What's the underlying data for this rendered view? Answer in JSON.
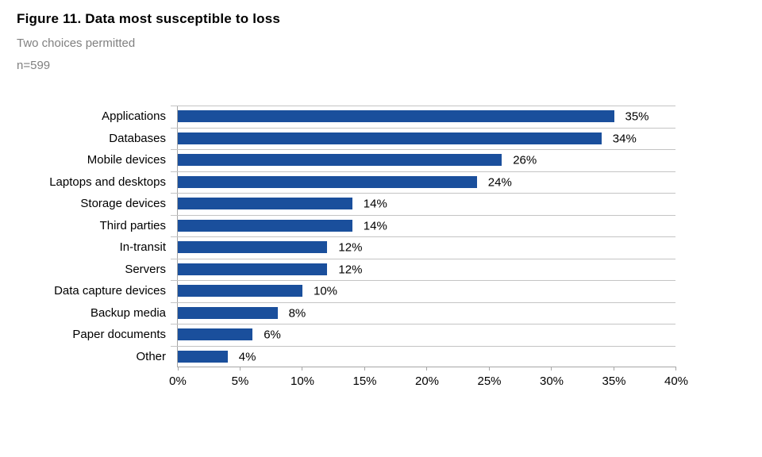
{
  "header": {
    "title": "Figure 11. Data most susceptible to loss",
    "subtitle": "Two choices permitted",
    "sample_size": "n=599"
  },
  "chart_data": {
    "type": "bar",
    "orientation": "horizontal",
    "title": "Figure 11. Data most susceptible to loss",
    "subtitle": "Two choices permitted",
    "note": "n=599",
    "categories": [
      "Applications",
      "Databases",
      "Mobile devices",
      "Laptops and desktops",
      "Storage devices",
      "Third parties",
      "In-transit",
      "Servers",
      "Data capture devices",
      "Backup media",
      "Paper documents",
      "Other"
    ],
    "values": [
      35,
      34,
      26,
      24,
      14,
      14,
      12,
      12,
      10,
      8,
      6,
      4
    ],
    "value_labels": [
      "35%",
      "34%",
      "26%",
      "24%",
      "14%",
      "14%",
      "12%",
      "12%",
      "10%",
      "8%",
      "6%",
      "4%"
    ],
    "xlabel": "",
    "ylabel": "",
    "xlim": [
      0,
      40
    ],
    "x_tick_step": 5,
    "x_tick_labels": [
      "0%",
      "5%",
      "10%",
      "15%",
      "20%",
      "25%",
      "30%",
      "35%",
      "40%"
    ],
    "grid": "horizontal band separators, no vertical gridlines",
    "legend": "none",
    "colors": {
      "bar": "#1a4f9c",
      "gridline": "#c4c4c4",
      "axis": "#a6a6a6",
      "value_label_text": "#000000",
      "category_text": "#000000",
      "subtitle_text": "#808080",
      "background": "#ffffff"
    }
  }
}
